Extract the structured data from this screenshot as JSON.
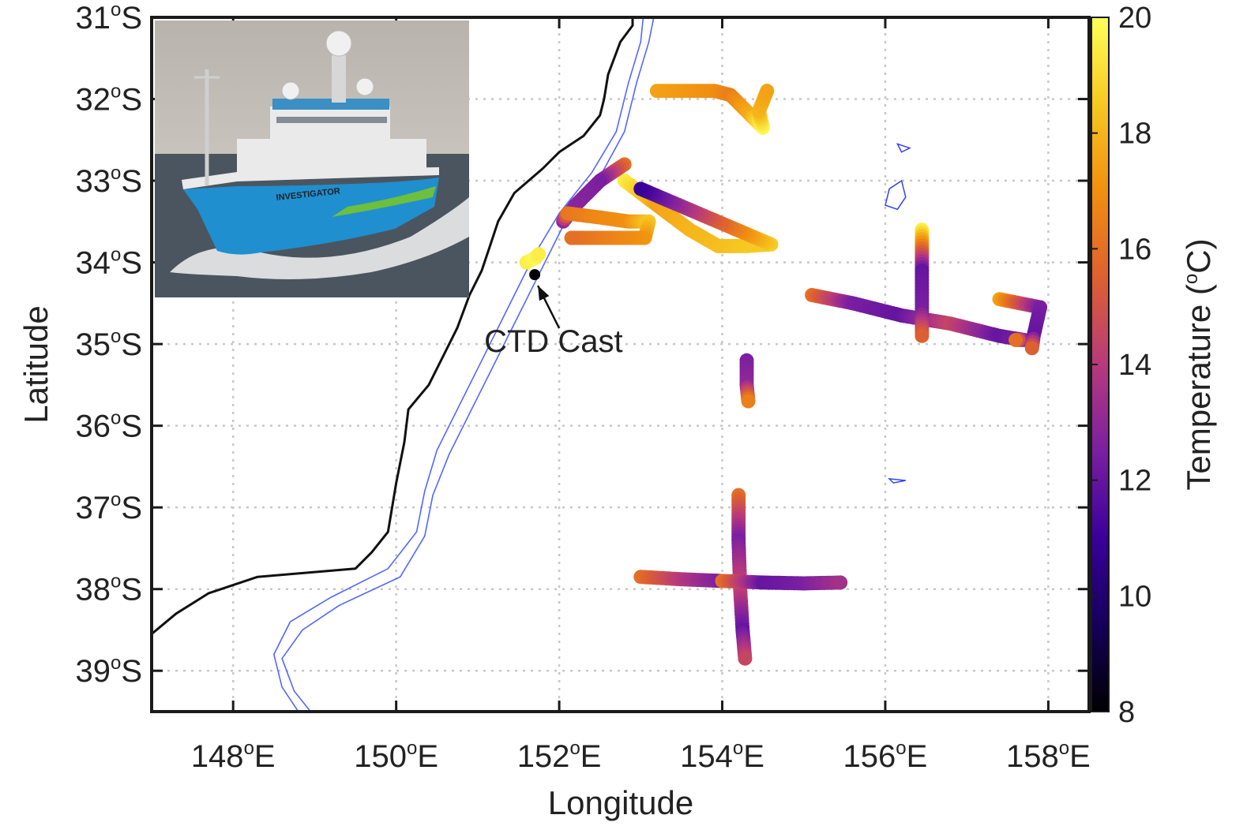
{
  "chart_data": {
    "type": "scatter",
    "title": "",
    "xlabel": "Longitude",
    "ylabel": "Latitude",
    "xlim": [
      147,
      158.5
    ],
    "ylim": [
      -39.5,
      -31
    ],
    "grid": true,
    "x_ticks": [
      {
        "deg": "148",
        "unit": "o",
        "suffix": "E",
        "value": 148
      },
      {
        "deg": "150",
        "unit": "o",
        "suffix": "E",
        "value": 150
      },
      {
        "deg": "152",
        "unit": "o",
        "suffix": "E",
        "value": 152
      },
      {
        "deg": "154",
        "unit": "o",
        "suffix": "E",
        "value": 154
      },
      {
        "deg": "156",
        "unit": "o",
        "suffix": "E",
        "value": 156
      },
      {
        "deg": "158",
        "unit": "o",
        "suffix": "E",
        "value": 158
      }
    ],
    "y_ticks": [
      {
        "deg": "31",
        "unit": "o",
        "suffix": "S",
        "value": -31
      },
      {
        "deg": "32",
        "unit": "o",
        "suffix": "S",
        "value": -32
      },
      {
        "deg": "33",
        "unit": "o",
        "suffix": "S",
        "value": -33
      },
      {
        "deg": "34",
        "unit": "o",
        "suffix": "S",
        "value": -34
      },
      {
        "deg": "35",
        "unit": "o",
        "suffix": "S",
        "value": -35
      },
      {
        "deg": "36",
        "unit": "o",
        "suffix": "S",
        "value": -36
      },
      {
        "deg": "37",
        "unit": "o",
        "suffix": "S",
        "value": -37
      },
      {
        "deg": "38",
        "unit": "o",
        "suffix": "S",
        "value": -38
      },
      {
        "deg": "39",
        "unit": "o",
        "suffix": "S",
        "value": -39
      }
    ],
    "colorbar": {
      "label_pre": "Temperature (",
      "label_unit": "o",
      "label_post": "C)",
      "range": [
        8,
        20
      ],
      "ticks": [
        "8",
        "10",
        "12",
        "14",
        "16",
        "18",
        "20"
      ],
      "colormap": [
        "#000000",
        "#14005a",
        "#3a009a",
        "#7a1fa2",
        "#b8397c",
        "#dd6030",
        "#f18f10",
        "#f7c821",
        "#ffff5a"
      ]
    },
    "annotation": {
      "text": "CTD Cast",
      "point": [
        151.7,
        -34.15
      ],
      "label_anchor": [
        152.0,
        -35.0
      ]
    },
    "coastline": [
      [
        152.9,
        -30.8
      ],
      [
        152.9,
        -31.1
      ],
      [
        152.75,
        -31.3
      ],
      [
        152.6,
        -31.7
      ],
      [
        152.55,
        -32.0
      ],
      [
        152.5,
        -32.2
      ],
      [
        152.3,
        -32.45
      ],
      [
        152.0,
        -32.65
      ],
      [
        151.8,
        -32.85
      ],
      [
        151.45,
        -33.15
      ],
      [
        151.25,
        -33.5
      ],
      [
        151.15,
        -33.8
      ],
      [
        151.05,
        -34.1
      ],
      [
        150.9,
        -34.4
      ],
      [
        150.75,
        -34.8
      ],
      [
        150.6,
        -35.1
      ],
      [
        150.4,
        -35.5
      ],
      [
        150.15,
        -35.8
      ],
      [
        150.1,
        -36.2
      ],
      [
        150.0,
        -36.7
      ],
      [
        149.9,
        -37.3
      ],
      [
        149.7,
        -37.55
      ],
      [
        149.5,
        -37.75
      ],
      [
        148.9,
        -37.8
      ],
      [
        148.3,
        -37.85
      ],
      [
        147.7,
        -38.05
      ],
      [
        147.3,
        -38.3
      ],
      [
        147.0,
        -38.55
      ]
    ],
    "contour_inner": [
      [
        153.05,
        -30.8
      ],
      [
        153.0,
        -31.3
      ],
      [
        152.85,
        -31.8
      ],
      [
        152.7,
        -32.4
      ],
      [
        152.4,
        -32.9
      ],
      [
        152.0,
        -33.4
      ],
      [
        151.7,
        -33.9
      ],
      [
        151.45,
        -34.4
      ],
      [
        151.2,
        -34.9
      ],
      [
        151.0,
        -35.3
      ],
      [
        150.75,
        -35.8
      ],
      [
        150.5,
        -36.3
      ],
      [
        150.35,
        -36.8
      ],
      [
        150.25,
        -37.3
      ],
      [
        149.9,
        -37.75
      ],
      [
        149.2,
        -38.1
      ],
      [
        148.7,
        -38.4
      ],
      [
        148.5,
        -38.8
      ],
      [
        148.6,
        -39.2
      ],
      [
        148.8,
        -39.5
      ]
    ],
    "contour_outer": [
      [
        153.2,
        -30.8
      ],
      [
        153.1,
        -31.3
      ],
      [
        152.95,
        -31.8
      ],
      [
        152.8,
        -32.4
      ],
      [
        152.5,
        -32.95
      ],
      [
        152.1,
        -33.45
      ],
      [
        151.85,
        -33.95
      ],
      [
        151.6,
        -34.45
      ],
      [
        151.35,
        -34.95
      ],
      [
        151.15,
        -35.35
      ],
      [
        150.9,
        -35.85
      ],
      [
        150.65,
        -36.35
      ],
      [
        150.45,
        -36.85
      ],
      [
        150.35,
        -37.35
      ],
      [
        150.05,
        -37.85
      ],
      [
        149.3,
        -38.2
      ],
      [
        148.85,
        -38.5
      ],
      [
        148.6,
        -38.85
      ],
      [
        148.75,
        -39.25
      ],
      [
        148.95,
        -39.5
      ]
    ],
    "islands": [
      [
        [
          156.2,
          -33.0
        ],
        [
          156.25,
          -33.2
        ],
        [
          156.15,
          -33.35
        ],
        [
          156.0,
          -33.3
        ],
        [
          156.05,
          -33.1
        ]
      ],
      [
        [
          156.15,
          -32.55
        ],
        [
          156.3,
          -32.6
        ],
        [
          156.2,
          -32.65
        ]
      ],
      [
        [
          156.05,
          -36.65
        ],
        [
          156.25,
          -36.67
        ],
        [
          156.1,
          -36.7
        ]
      ]
    ],
    "series": [
      {
        "points": [
          [
            153.2,
            -31.9,
            17.5
          ],
          [
            153.9,
            -31.9,
            17.0
          ],
          [
            154.1,
            -31.95,
            16.5
          ],
          [
            154.35,
            -32.2,
            17.8
          ],
          [
            154.5,
            -32.35,
            19.8
          ],
          [
            154.45,
            -32.15,
            18.0
          ],
          [
            154.55,
            -31.9,
            17.5
          ]
        ]
      },
      {
        "points": [
          [
            152.8,
            -33.0,
            19.5
          ],
          [
            153.2,
            -33.3,
            17.5
          ],
          [
            153.6,
            -33.6,
            18.0
          ],
          [
            153.95,
            -33.8,
            18.2
          ],
          [
            154.3,
            -33.8,
            18.5
          ],
          [
            154.6,
            -33.78,
            18.6
          ],
          [
            153.0,
            -33.1,
            11.0
          ]
        ]
      },
      {
        "points": [
          [
            152.8,
            -32.8,
            16.0
          ],
          [
            152.5,
            -33.0,
            12.5
          ],
          [
            152.2,
            -33.3,
            12.8
          ],
          [
            152.05,
            -33.5,
            13.0
          ],
          [
            152.1,
            -33.4,
            16.2
          ],
          [
            152.5,
            -33.45,
            16.8
          ],
          [
            152.85,
            -33.5,
            17.0
          ],
          [
            153.1,
            -33.5,
            18.5
          ],
          [
            153.05,
            -33.7,
            17.2
          ],
          [
            152.5,
            -33.7,
            16.5
          ],
          [
            152.15,
            -33.7,
            16.0
          ]
        ]
      },
      {
        "points": [
          [
            151.6,
            -34.0,
            19.5
          ],
          [
            151.7,
            -33.95,
            19.8
          ],
          [
            151.75,
            -33.9,
            19.5
          ]
        ]
      },
      {
        "points": [
          [
            155.1,
            -34.4,
            16.0
          ],
          [
            155.6,
            -34.5,
            12.5
          ],
          [
            156.2,
            -34.65,
            12.0
          ],
          [
            156.8,
            -34.75,
            14.5
          ],
          [
            157.4,
            -34.9,
            12.0
          ],
          [
            157.7,
            -34.95,
            12.5
          ],
          [
            157.6,
            -34.95,
            16.0
          ]
        ]
      },
      {
        "points": [
          [
            156.45,
            -33.6,
            19.5
          ],
          [
            156.45,
            -34.1,
            12.0
          ],
          [
            156.45,
            -34.6,
            12.5
          ],
          [
            156.45,
            -34.9,
            15.5
          ]
        ]
      },
      {
        "points": [
          [
            157.4,
            -34.45,
            17.5
          ],
          [
            157.9,
            -34.55,
            12.5
          ],
          [
            157.82,
            -34.9,
            12.0
          ],
          [
            157.8,
            -35.05,
            15.5
          ]
        ]
      },
      {
        "points": [
          [
            154.3,
            -35.2,
            12.5
          ],
          [
            154.3,
            -35.5,
            13.0
          ],
          [
            154.32,
            -35.7,
            16.5
          ]
        ]
      },
      {
        "points": [
          [
            154.2,
            -36.85,
            16.0
          ],
          [
            154.2,
            -37.4,
            12.5
          ],
          [
            154.22,
            -38.0,
            14.5
          ],
          [
            154.25,
            -38.5,
            12.0
          ],
          [
            154.28,
            -38.85,
            14.5
          ]
        ]
      },
      {
        "points": [
          [
            153.0,
            -37.85,
            16.0
          ],
          [
            153.5,
            -37.88,
            14.0
          ],
          [
            154.0,
            -37.9,
            12.5
          ],
          [
            154.0,
            -37.9,
            16.0
          ],
          [
            154.5,
            -37.92,
            12.0
          ],
          [
            155.0,
            -37.93,
            12.5
          ],
          [
            155.45,
            -37.92,
            13.5
          ]
        ]
      }
    ]
  },
  "inset_photo": {
    "ship_name": "INVESTIGATOR",
    "colors": {
      "sky_top": "#b9b3ad",
      "sky_bottom": "#d8d3cd",
      "sea": "#4b5560",
      "hull": "#1f8fd0",
      "hull_stripe": "#6dbf3e",
      "superstructure": "#eaeaea",
      "bridge_band": "#3a8fc4",
      "wake": "#f4f4f4"
    }
  }
}
